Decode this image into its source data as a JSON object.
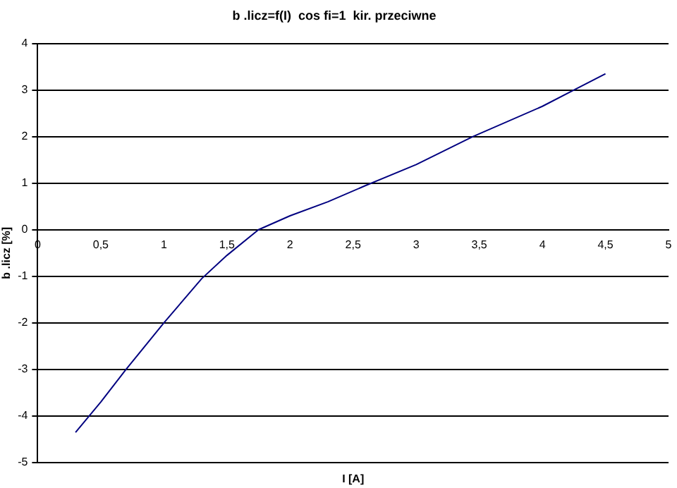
{
  "chart_data": {
    "type": "line",
    "title": "b .licz=f(I)  cos fi=1  kir. przeciwne",
    "xlabel": "I [A]",
    "ylabel": "b .licz [%]",
    "x": [
      0.3,
      0.5,
      0.7,
      1.0,
      1.3,
      1.5,
      1.75,
      2.0,
      2.3,
      2.6,
      3.0,
      3.45,
      4.0,
      4.25,
      4.5
    ],
    "series": [
      {
        "color": "#000080",
        "values": [
          -4.35,
          -3.7,
          -3.0,
          -2.0,
          -1.05,
          -0.55,
          0.0,
          0.3,
          0.6,
          0.95,
          1.4,
          2.0,
          2.65,
          3.0,
          3.35
        ]
      }
    ],
    "xlim": [
      0,
      5
    ],
    "xticks": [
      0,
      {
        "value": 0.5,
        "label": "0,5"
      },
      1,
      {
        "value": 1.5,
        "label": "1,5"
      },
      2,
      {
        "value": 2.5,
        "label": "2,5"
      },
      3,
      {
        "value": 3.5,
        "label": "3,5"
      },
      4,
      {
        "value": 4.5,
        "label": "4,5"
      },
      5
    ],
    "ylim": [
      -5,
      4
    ],
    "yticks": [
      -5,
      -4,
      -3,
      -2,
      -1,
      0,
      1,
      2,
      3,
      4
    ],
    "grid": "y",
    "legend": false,
    "marker": "none",
    "line_style": "solid"
  }
}
